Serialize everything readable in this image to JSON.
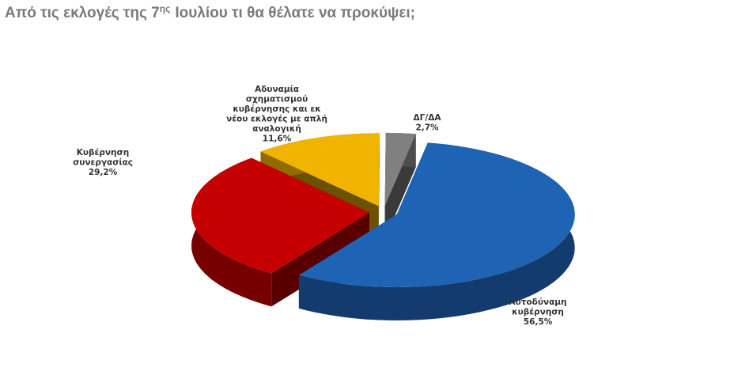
{
  "chart_data": {
    "type": "pie",
    "title": [
      "Από τις εκλογές της 7",
      "ης",
      "Ιουλίου τι θα θέλατε να προκύψει;"
    ],
    "categories": [
      "Αυτοδύναμη\nκυβέρνηση",
      "Κυβέρνηση\nσυνεργασίας",
      "Αδυναμία\nσχηματισμού\nκυβέρνησης και εκ\nνέου εκλογές με απλή\nαναλογική",
      "ΔΓ/ΔΑ"
    ],
    "values": [
      56.5,
      29.2,
      11.6,
      2.7
    ],
    "value_labels": [
      "56,5%",
      "29,2%",
      "11,6%",
      "2,7%"
    ],
    "colors": [
      "#1f63b5",
      "#c40000",
      "#f0b400",
      "#808080"
    ]
  }
}
